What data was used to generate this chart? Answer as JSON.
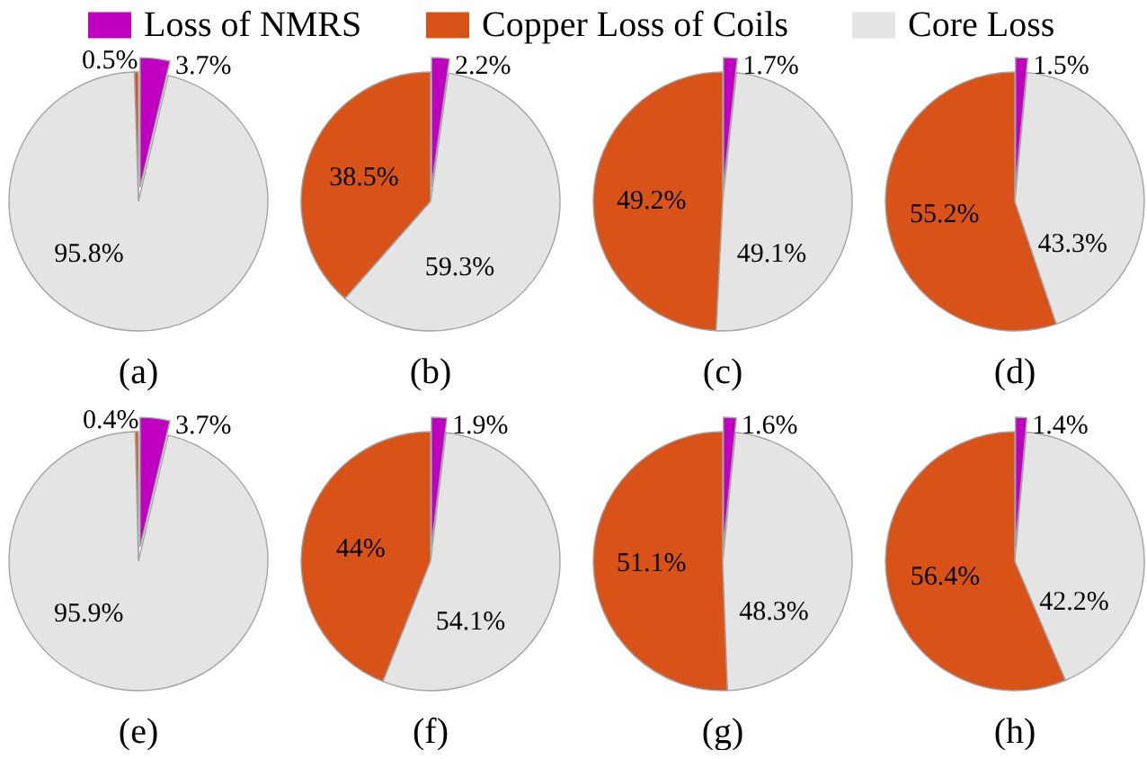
{
  "chart_data": [
    {
      "type": "pie",
      "title": "(a)",
      "categories": [
        "Loss of NMRS",
        "Copper Loss of Coils",
        "Core Loss"
      ],
      "values": [
        3.7,
        0.5,
        95.8
      ],
      "colors": [
        "#c000c0",
        "#d95319",
        "#e4e4e4"
      ],
      "value_labels": [
        "3.7%",
        "0.5%",
        "95.8%"
      ],
      "legend": "top"
    },
    {
      "type": "pie",
      "title": "(b)",
      "categories": [
        null,
        null,
        null
      ],
      "values": [
        2.2,
        38.5,
        59.3
      ],
      "colors": [
        "#c000c0",
        "#d95319",
        "#e4e4e4"
      ],
      "value_labels": [
        "2.2%",
        "38.5%",
        "59.3%"
      ]
    },
    {
      "type": "pie",
      "title": "(c)",
      "categories": [
        null,
        null,
        null
      ],
      "values": [
        1.7,
        49.2,
        49.1
      ],
      "colors": [
        "#c000c0",
        "#d95319",
        "#e4e4e4"
      ],
      "value_labels": [
        "1.7%",
        "49.2%",
        "49.1%"
      ]
    },
    {
      "type": "pie",
      "title": "(d)",
      "categories": [
        null,
        null,
        null
      ],
      "values": [
        1.5,
        55.2,
        43.3
      ],
      "colors": [
        "#c000c0",
        "#d95319",
        "#e4e4e4"
      ],
      "value_labels": [
        "1.5%",
        "55.2%",
        "43.3%"
      ]
    },
    {
      "type": "pie",
      "title": "(e)",
      "categories": [
        null,
        null,
        null
      ],
      "values": [
        3.7,
        0.4,
        95.9
      ],
      "colors": [
        "#c000c0",
        "#d95319",
        "#e4e4e4"
      ],
      "value_labels": [
        "3.7%",
        "0.4%",
        "95.9%"
      ]
    },
    {
      "type": "pie",
      "title": "(f)",
      "categories": [
        null,
        null,
        null
      ],
      "values": [
        1.9,
        44,
        54.1
      ],
      "colors": [
        "#c000c0",
        "#d95319",
        "#e4e4e4"
      ],
      "value_labels": [
        "1.9%",
        "44%",
        "54.1%"
      ]
    },
    {
      "type": "pie",
      "title": "(g)",
      "categories": [
        null,
        null,
        null
      ],
      "values": [
        1.6,
        51.1,
        48.3
      ],
      "colors": [
        "#c000c0",
        "#d95319",
        "#e4e4e4"
      ],
      "value_labels": [
        "1.6%",
        "51.1%",
        "48.3%"
      ]
    },
    {
      "type": "pie",
      "title": "(h)",
      "categories": [
        null,
        null,
        null
      ],
      "values": [
        1.4,
        56.4,
        42.2
      ],
      "colors": [
        "#c000c0",
        "#d95319",
        "#e4e4e4"
      ],
      "value_labels": [
        "1.4%",
        "56.4%",
        "42.2%"
      ]
    }
  ]
}
